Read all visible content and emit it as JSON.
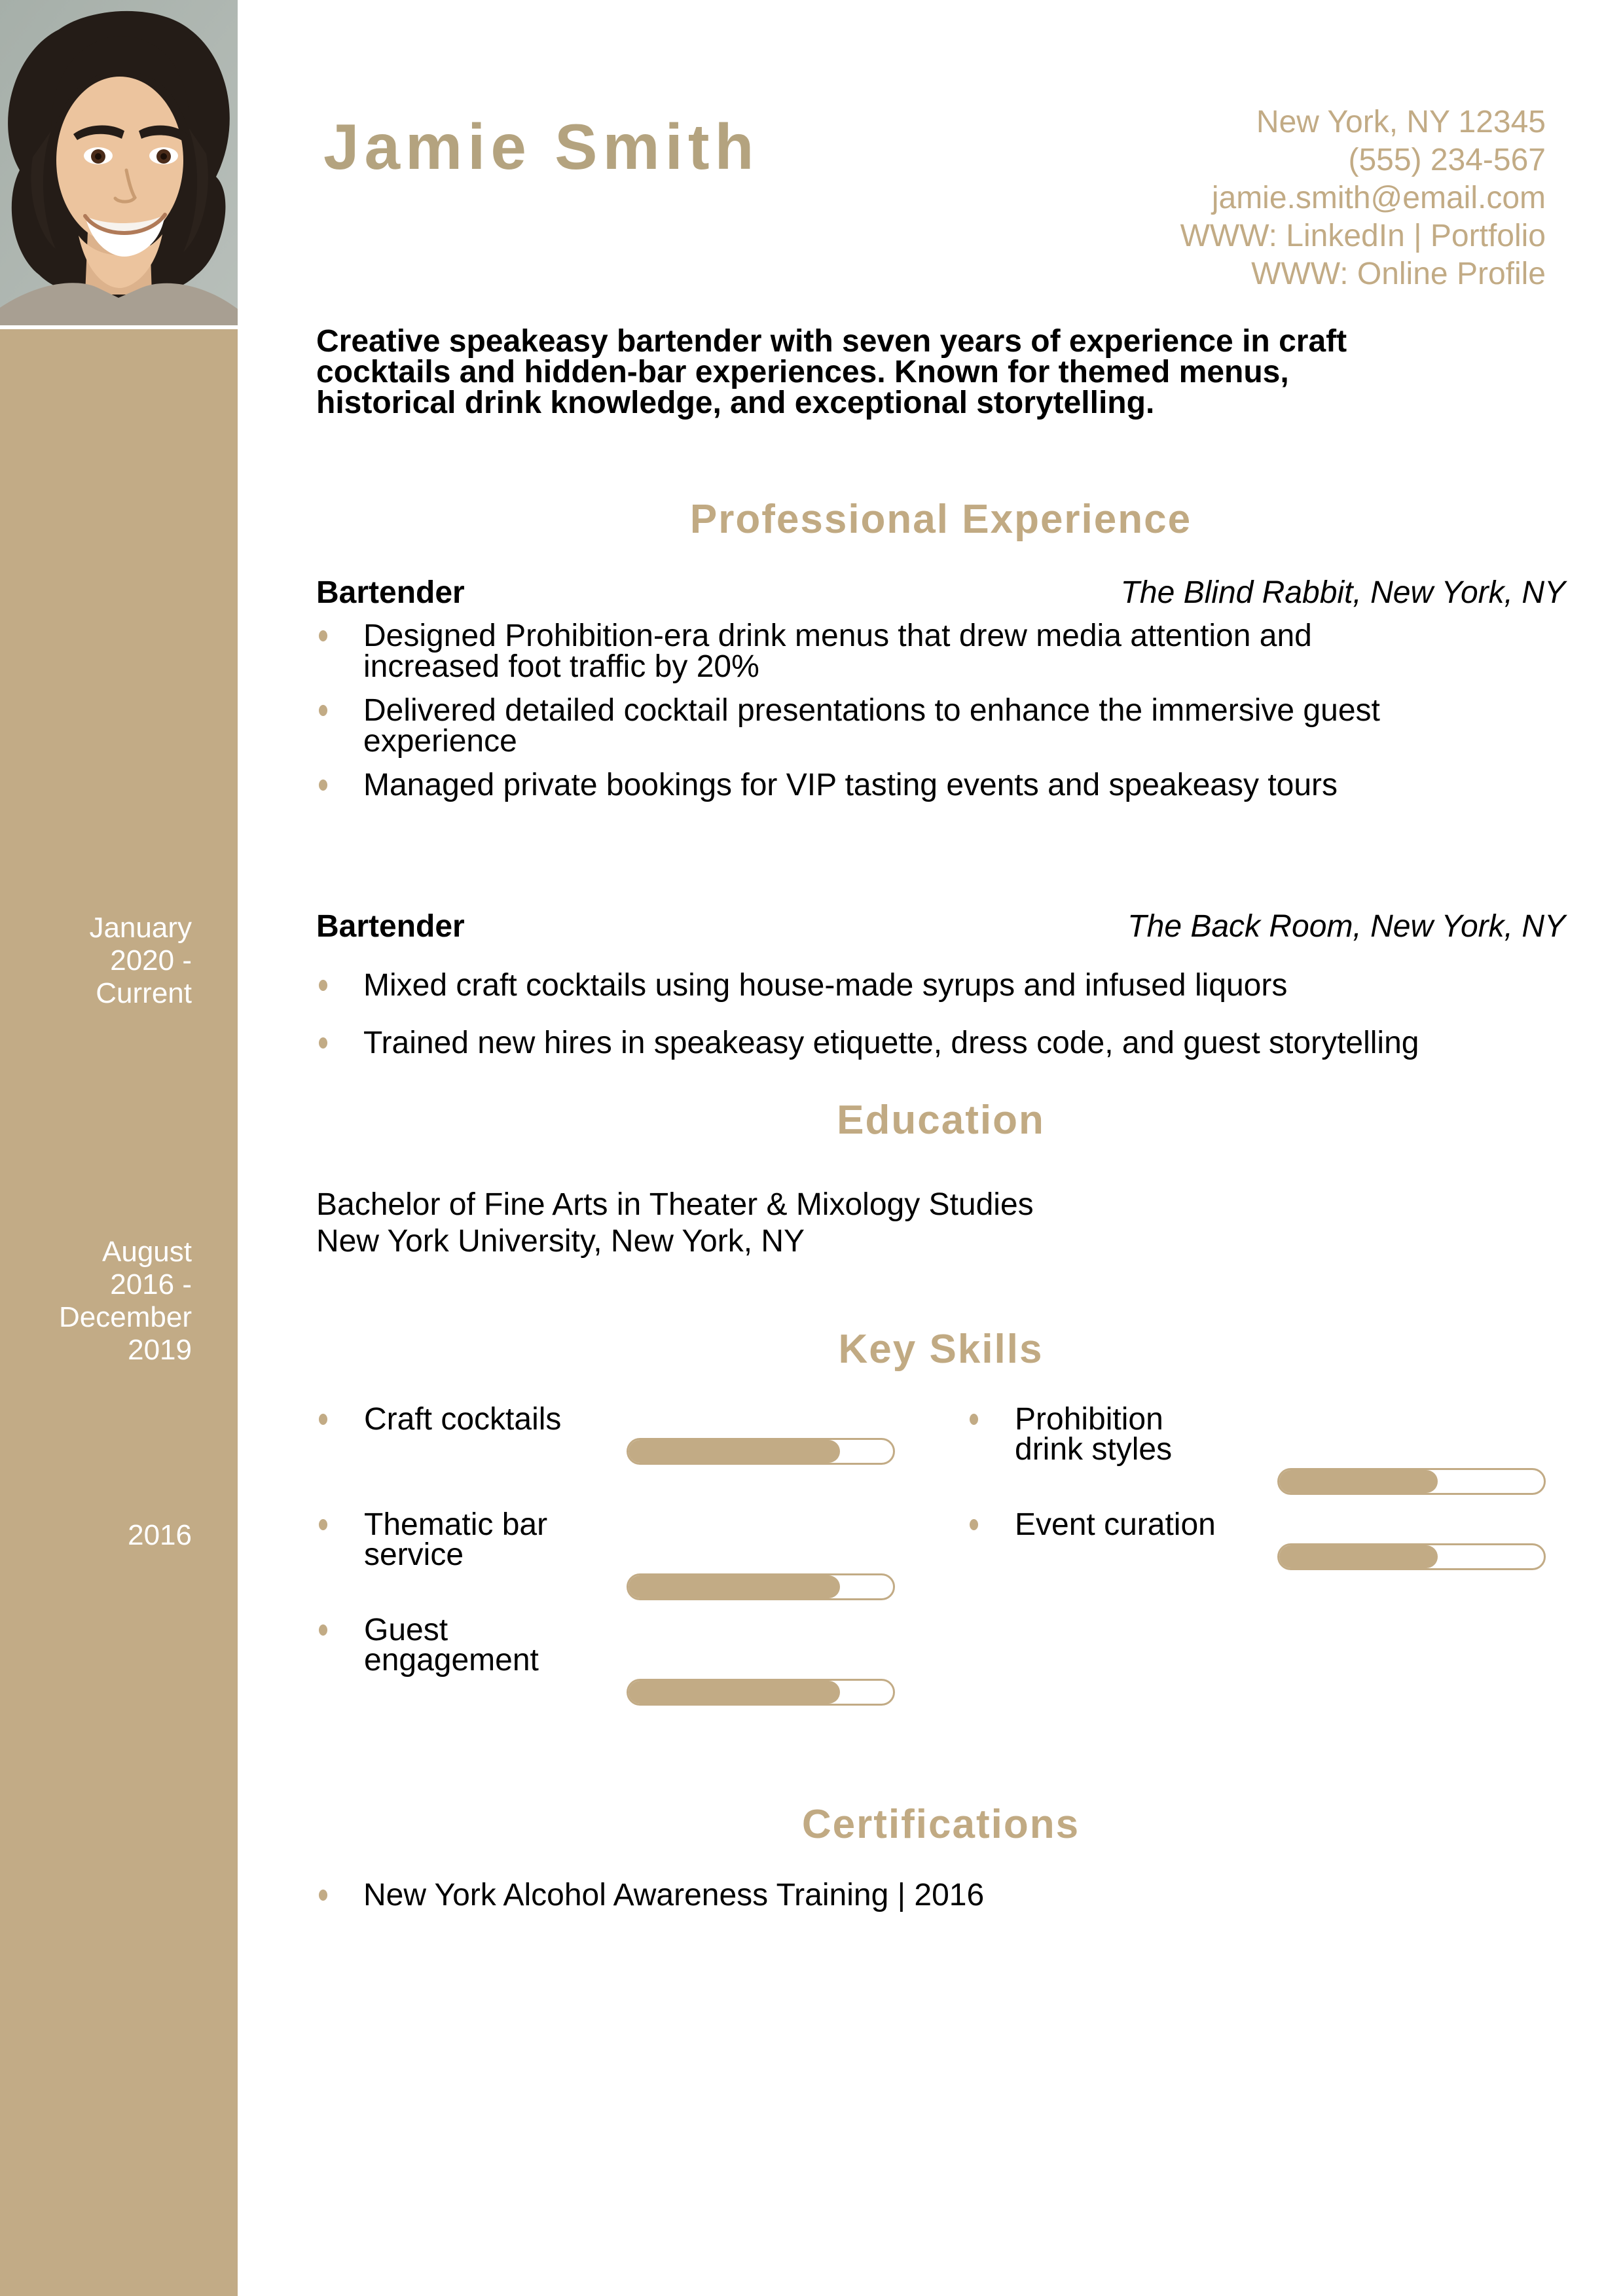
{
  "header": {
    "name": "Jamie Smith",
    "contact_lines": [
      "New York, NY 12345",
      "(555) 234-567",
      "jamie.smith@email.com",
      "WWW: LinkedIn | Portfolio",
      "WWW: Online Profile"
    ]
  },
  "summary": "Creative speakeasy bartender with seven years of experience in craft\ncocktails and hidden-bar experiences. Known for themed menus,\nhistorical drink knowledge, and exceptional storytelling.",
  "sections": {
    "experience_title": "Professional Experience",
    "education_title": "Education",
    "skills_title": "Key Skills",
    "certifications_title": "Certifications"
  },
  "experience": {
    "jobs": [
      {
        "title": "Bartender",
        "company": "The Blind Rabbit, New York, NY",
        "dates_sidebar": "January\n2020 -\nCurrent",
        "bullets": [
          "Designed Prohibition-era drink menus that drew media attention and\nincreased foot traffic by 20%",
          "Delivered detailed cocktail presentations to enhance the immersive guest\nexperience",
          "Managed private bookings for VIP tasting events and speakeasy tours"
        ]
      },
      {
        "title": "Bartender",
        "company": "The Back Room, New York, NY",
        "dates_sidebar": "August\n2016 -\nDecember\n2019",
        "bullets": [
          "Mixed craft cocktails using house-made syrups and infused liquors",
          "Trained new hires in speakeasy etiquette, dress code, and guest storytelling"
        ]
      }
    ]
  },
  "education": {
    "date_sidebar": "2016",
    "degree": "Bachelor of Fine Arts in Theater & Mixology Studies",
    "school": "New York University, New York, NY"
  },
  "skills": {
    "left": [
      {
        "label": "Craft cocktails",
        "percent": 80
      },
      {
        "label": "Thematic bar\nservice",
        "percent": 80
      },
      {
        "label": "Guest\nengagement",
        "percent": 80
      }
    ],
    "right": [
      {
        "label": "Prohibition\ndrink styles",
        "percent": 60
      },
      {
        "label": "Event curation",
        "percent": 60
      }
    ]
  },
  "certifications": [
    "New York Alcohol Awareness Training | 2016"
  ],
  "colors": {
    "accent": "#c2ab85",
    "accent_dark": "#b4a37f",
    "sidebar": "#c2ab86",
    "date_text": "#ffffff",
    "body_text": "#000000"
  }
}
